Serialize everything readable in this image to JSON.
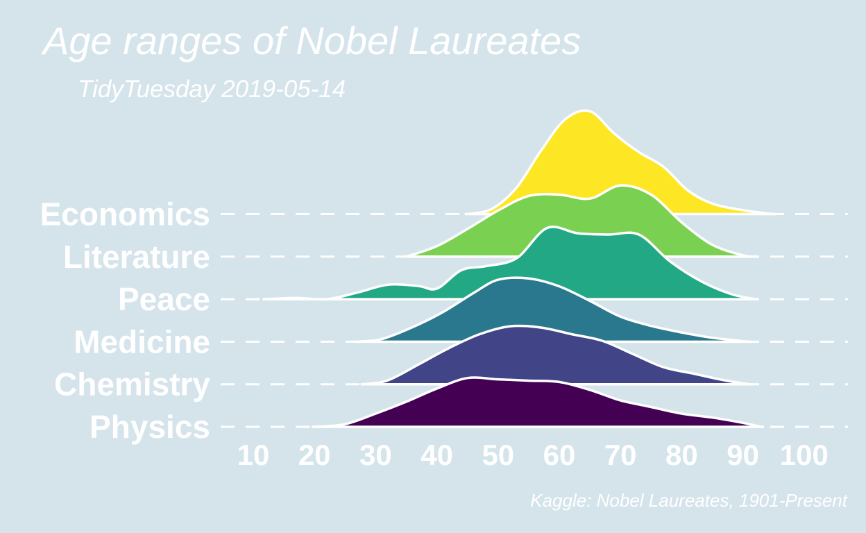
{
  "chart_data": {
    "type": "ridgeline",
    "title": "Age ranges of Nobel Laureates",
    "subtitle": "TidyTuesday 2019-05-14",
    "caption": "Kaggle: Nobel Laureates, 1901-Present",
    "xlabel": "",
    "ylabel": "",
    "xlim": [
      10,
      100
    ],
    "x_ticks": [
      "10",
      "20",
      "30",
      "40",
      "50",
      "60",
      "70",
      "80",
      "90",
      "100"
    ],
    "grid": false,
    "legend": "none",
    "background": "#d5e4eb",
    "outline_color": "#ffffff",
    "categories": [
      "Physics",
      "Chemistry",
      "Medicine",
      "Peace",
      "Literature",
      "Economics"
    ],
    "series": [
      {
        "name": "Physics",
        "color": "#440154",
        "x": [
          20,
          25,
          30,
          35,
          40,
          45,
          50,
          55,
          60,
          65,
          70,
          75,
          80,
          85,
          90,
          93
        ],
        "y": [
          0.0,
          0.04,
          0.2,
          0.38,
          0.58,
          0.74,
          0.72,
          0.7,
          0.68,
          0.56,
          0.4,
          0.3,
          0.2,
          0.14,
          0.06,
          0.0
        ]
      },
      {
        "name": "Chemistry",
        "color": "#414487",
        "x": [
          28,
          32,
          37,
          42,
          47,
          52,
          57,
          62,
          67,
          72,
          77,
          82,
          87,
          91
        ],
        "y": [
          0.0,
          0.06,
          0.3,
          0.55,
          0.76,
          0.88,
          0.86,
          0.76,
          0.66,
          0.46,
          0.26,
          0.16,
          0.06,
          0.0
        ]
      },
      {
        "name": "Medicine",
        "color": "#2a788e",
        "x": [
          27,
          31,
          36,
          41,
          46,
          50,
          55,
          60,
          65,
          70,
          75,
          80,
          85,
          91
        ],
        "y": [
          0.0,
          0.04,
          0.22,
          0.45,
          0.74,
          0.94,
          0.96,
          0.84,
          0.62,
          0.38,
          0.24,
          0.14,
          0.06,
          0.0
        ]
      },
      {
        "name": "Peace",
        "color": "#22a884",
        "x": [
          12,
          17,
          22,
          27,
          32,
          37,
          40,
          44,
          48,
          53,
          58,
          63,
          68,
          73,
          78,
          83,
          88,
          92
        ],
        "y": [
          0.0,
          0.02,
          0.0,
          0.1,
          0.22,
          0.2,
          0.16,
          0.44,
          0.5,
          0.62,
          1.08,
          1.0,
          0.98,
          0.98,
          0.58,
          0.28,
          0.08,
          0.0
        ]
      },
      {
        "name": "Literature",
        "color": "#7ad151",
        "x": [
          35,
          40,
          45,
          50,
          55,
          60,
          65,
          70,
          75,
          80,
          85,
          90,
          92
        ],
        "y": [
          0.0,
          0.16,
          0.42,
          0.7,
          0.92,
          0.94,
          0.88,
          1.08,
          0.94,
          0.52,
          0.18,
          0.02,
          0.0
        ]
      },
      {
        "name": "Economics",
        "color": "#fde725",
        "x": [
          45,
          49,
          53,
          57,
          61,
          65,
          69,
          73,
          77,
          81,
          85,
          90,
          95
        ],
        "y": [
          0.0,
          0.08,
          0.4,
          0.96,
          1.44,
          1.56,
          1.22,
          0.94,
          0.72,
          0.36,
          0.16,
          0.06,
          0.0
        ]
      }
    ]
  }
}
